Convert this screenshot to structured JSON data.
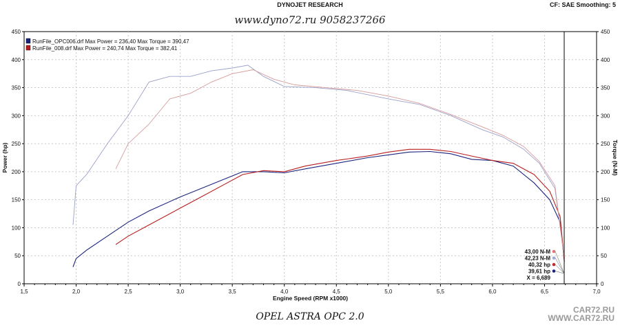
{
  "header": {
    "title": "DYNOJET RESEARCH",
    "settings": "CF: SAE  Smoothing: 5"
  },
  "watermark_top": "www.dyno72.ru 9058237266",
  "caption": "OPEL ASTRA OPC 2.0",
  "watermark_bottom": [
    "CAR72.RU",
    "WWW.CAR72.RU"
  ],
  "colors": {
    "run1": "#1a237e",
    "run2": "#b71c1c",
    "run1_light": "#9aa0c8",
    "run2_light": "#d79a9a",
    "cursor": "#000000"
  },
  "chart_data": {
    "type": "line",
    "xlabel": "Engine Speed (RPM x1000)",
    "ylabel_left": "Power (hp)",
    "ylabel_right": "Torque (N-M)",
    "xlim": [
      1.5,
      7.0
    ],
    "ylim": [
      0,
      450
    ],
    "x_ticks": [
      "1,5",
      "2,0",
      "2,5",
      "3,0",
      "3,5",
      "4,0",
      "4,5",
      "5,0",
      "5,5",
      "6,0",
      "6,5",
      "7,0"
    ],
    "y_ticks": [
      "0",
      "50",
      "100",
      "150",
      "200",
      "250",
      "300",
      "350",
      "400",
      "450"
    ],
    "legend": [
      "RunFile_OPC006.drf Max Power = 236,40     Max Torque = 390,47",
      "RunFile_008.drf Max Power = 240,74     Max Torque = 382,41"
    ],
    "cursor": {
      "x": 6.689,
      "readouts": [
        "43,00 N-M",
        "42,23 N-M",
        "40,32 hp",
        "39,61 hp",
        "X = 6,689"
      ]
    },
    "series": [
      {
        "name": "RunFile_OPC006.drf",
        "measure": "power",
        "x": [
          1.97,
          2.0,
          2.1,
          2.3,
          2.5,
          2.7,
          3.0,
          3.2,
          3.4,
          3.6,
          3.8,
          4.0,
          4.2,
          4.5,
          4.8,
          5.0,
          5.2,
          5.4,
          5.6,
          5.8,
          6.0,
          6.2,
          6.4,
          6.55,
          6.65,
          6.69
        ],
        "y": [
          30,
          45,
          60,
          85,
          110,
          130,
          155,
          170,
          185,
          200,
          200,
          198,
          205,
          215,
          225,
          230,
          235,
          236,
          232,
          222,
          220,
          210,
          180,
          150,
          110,
          40
        ]
      },
      {
        "name": "RunFile_008.drf",
        "measure": "power",
        "x": [
          2.38,
          2.5,
          2.7,
          3.0,
          3.2,
          3.4,
          3.6,
          3.8,
          4.0,
          4.2,
          4.5,
          4.8,
          5.0,
          5.2,
          5.4,
          5.6,
          5.8,
          6.0,
          6.2,
          6.4,
          6.55,
          6.65,
          6.69
        ],
        "y": [
          70,
          85,
          105,
          135,
          155,
          175,
          195,
          202,
          200,
          210,
          220,
          228,
          235,
          240,
          240,
          236,
          228,
          220,
          215,
          195,
          165,
          120,
          40
        ]
      },
      {
        "name": "RunFile_OPC006.drf",
        "measure": "torque",
        "x": [
          1.97,
          2.0,
          2.1,
          2.3,
          2.5,
          2.7,
          2.9,
          3.1,
          3.3,
          3.5,
          3.65,
          3.8,
          4.0,
          4.3,
          4.6,
          5.0,
          5.3,
          5.6,
          5.9,
          6.1,
          6.3,
          6.45,
          6.6,
          6.69
        ],
        "y": [
          105,
          175,
          195,
          250,
          300,
          360,
          370,
          370,
          380,
          385,
          390,
          370,
          352,
          350,
          345,
          330,
          320,
          300,
          275,
          262,
          240,
          215,
          170,
          45
        ]
      },
      {
        "name": "RunFile_008.drf",
        "measure": "torque",
        "x": [
          2.38,
          2.5,
          2.7,
          2.9,
          3.1,
          3.3,
          3.5,
          3.7,
          3.9,
          4.1,
          4.4,
          4.7,
          5.0,
          5.3,
          5.6,
          5.9,
          6.1,
          6.3,
          6.45,
          6.6,
          6.69
        ],
        "y": [
          205,
          250,
          285,
          330,
          340,
          360,
          375,
          382,
          365,
          355,
          350,
          345,
          335,
          322,
          302,
          280,
          265,
          245,
          218,
          175,
          45
        ]
      }
    ]
  }
}
